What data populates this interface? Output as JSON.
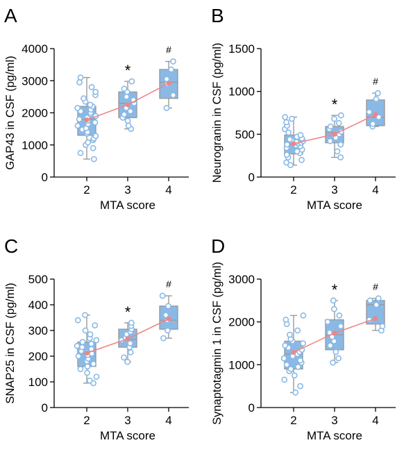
{
  "colors": {
    "box_fill": "#8ab9e6",
    "box_stroke": "#9a9a9a",
    "dot_fill": "#ffffff",
    "dot_stroke": "#8ab9e6",
    "mean_line": "#f08585",
    "axis": "#000000"
  },
  "chart_data": [
    {
      "panel_label": "A",
      "type": "box",
      "xlabel": "MTA score",
      "ylabel": "GAP43 in CSF (pg/ml)",
      "categories": [
        "2",
        "3",
        "4"
      ],
      "ylim": [
        0,
        4000
      ],
      "yticks": [
        0,
        1000,
        2000,
        3000,
        4000
      ],
      "ytick_labels": [
        "0",
        "1000",
        "2000",
        "3000",
        "4000"
      ],
      "boxes": [
        {
          "category": "2",
          "whisker_low": 560,
          "q1": 1300,
          "median": 1800,
          "q3": 2200,
          "whisker_high": 3100,
          "mean": 1780
        },
        {
          "category": "3",
          "whisker_low": 1500,
          "q1": 1850,
          "median": 2300,
          "q3": 2650,
          "whisker_high": 2980,
          "mean": 2250
        },
        {
          "category": "4",
          "whisker_low": 2150,
          "q1": 2450,
          "median": 2950,
          "q3": 3350,
          "whisker_high": 3600,
          "mean": 2920
        }
      ],
      "points": [
        [
          560,
          750,
          900,
          1000,
          1080,
          1150,
          1200,
          1280,
          1350,
          1400,
          1480,
          1520,
          1600,
          1650,
          1700,
          1750,
          1800,
          1850,
          1900,
          1950,
          2000,
          2050,
          2100,
          2150,
          2200,
          2250,
          2350,
          2450,
          2550,
          2650,
          2800,
          2950,
          3100
        ],
        [
          1500,
          1600,
          1750,
          1850,
          1950,
          2050,
          2150,
          2300,
          2400,
          2500,
          2650,
          2750,
          2980
        ],
        [
          2150,
          2550,
          2900,
          3050,
          3350,
          3600
        ]
      ],
      "annotations": [
        "",
        "*",
        "#"
      ]
    },
    {
      "panel_label": "B",
      "type": "box",
      "xlabel": "MTA score",
      "ylabel": "Neurogranin in CSF (pg/ml)",
      "categories": [
        "2",
        "3",
        "4"
      ],
      "ylim": [
        0,
        1500
      ],
      "yticks": [
        0,
        500,
        1000,
        1500
      ],
      "ytick_labels": [
        "0",
        "500",
        "1000",
        "1500"
      ],
      "boxes": [
        {
          "category": "2",
          "whisker_low": 140,
          "q1": 270,
          "median": 380,
          "q3": 490,
          "whisker_high": 700,
          "mean": 390
        },
        {
          "category": "3",
          "whisker_low": 230,
          "q1": 400,
          "median": 520,
          "q3": 590,
          "whisker_high": 720,
          "mean": 500
        },
        {
          "category": "4",
          "whisker_low": 590,
          "q1": 600,
          "median": 700,
          "q3": 900,
          "whisker_high": 980,
          "mean": 730
        }
      ],
      "points": [
        [
          140,
          170,
          200,
          230,
          260,
          280,
          300,
          320,
          340,
          360,
          370,
          380,
          390,
          400,
          410,
          420,
          430,
          440,
          450,
          470,
          490,
          520,
          560,
          600,
          640,
          680,
          700
        ],
        [
          230,
          300,
          380,
          420,
          460,
          500,
          530,
          560,
          590,
          630,
          680,
          720
        ],
        [
          590,
          620,
          700,
          760,
          910,
          980
        ]
      ],
      "annotations": [
        "",
        "*",
        "#"
      ]
    },
    {
      "panel_label": "C",
      "type": "box",
      "xlabel": "MTA score",
      "ylabel": "SNAP25 in CSF (pg/ml)",
      "categories": [
        "2",
        "3",
        "4"
      ],
      "ylim": [
        0,
        500
      ],
      "yticks": [
        0,
        100,
        200,
        300,
        400,
        500
      ],
      "ytick_labels": [
        "0",
        "100",
        "200",
        "300",
        "400",
        "500"
      ],
      "boxes": [
        {
          "category": "2",
          "whisker_low": 95,
          "q1": 160,
          "median": 210,
          "q3": 255,
          "whisker_high": 360,
          "mean": 212
        },
        {
          "category": "3",
          "whisker_low": 178,
          "q1": 235,
          "median": 265,
          "q3": 305,
          "whisker_high": 330,
          "mean": 268
        },
        {
          "category": "4",
          "whisker_low": 270,
          "q1": 305,
          "median": 340,
          "q3": 395,
          "whisker_high": 435,
          "mean": 345
        }
      ],
      "points": [
        [
          95,
          105,
          120,
          135,
          150,
          160,
          170,
          180,
          190,
          200,
          205,
          210,
          215,
          220,
          228,
          235,
          240,
          248,
          255,
          262,
          270,
          285,
          300,
          320,
          340,
          360
        ],
        [
          178,
          195,
          215,
          235,
          250,
          262,
          272,
          285,
          295,
          305,
          318,
          330
        ],
        [
          270,
          300,
          340,
          360,
          395,
          435
        ]
      ],
      "annotations": [
        "",
        "*",
        "#"
      ]
    },
    {
      "panel_label": "D",
      "type": "box",
      "xlabel": "MTA score",
      "ylabel": "Synaptotagmin 1 in CSF (pg/ml)",
      "categories": [
        "2",
        "3",
        "4"
      ],
      "ylim": [
        0,
        3000
      ],
      "yticks": [
        0,
        1000,
        2000,
        3000
      ],
      "ytick_labels": [
        "0",
        "1000",
        "2000",
        "3000"
      ],
      "boxes": [
        {
          "category": "2",
          "whisker_low": 350,
          "q1": 900,
          "median": 1250,
          "q3": 1550,
          "whisker_high": 2150,
          "mean": 1290
        },
        {
          "category": "3",
          "whisker_low": 1050,
          "q1": 1350,
          "median": 1700,
          "q3": 2050,
          "whisker_high": 2500,
          "mean": 1740
        },
        {
          "category": "4",
          "whisker_low": 1800,
          "q1": 1950,
          "median": 2400,
          "q3": 2500,
          "whisker_high": 2550,
          "mean": 2080
        }
      ],
      "points": [
        [
          350,
          500,
          650,
          750,
          850,
          900,
          950,
          1000,
          1050,
          1100,
          1150,
          1200,
          1250,
          1300,
          1350,
          1400,
          1450,
          1500,
          1550,
          1600,
          1700,
          1800,
          1950,
          2050,
          2150
        ],
        [
          1050,
          1150,
          1300,
          1450,
          1550,
          1650,
          1750,
          1900,
          2000,
          2150,
          2300,
          2500
        ],
        [
          1800,
          1900,
          2050,
          2400,
          2500,
          2550
        ]
      ],
      "annotations": [
        "",
        "*",
        "#"
      ]
    }
  ]
}
